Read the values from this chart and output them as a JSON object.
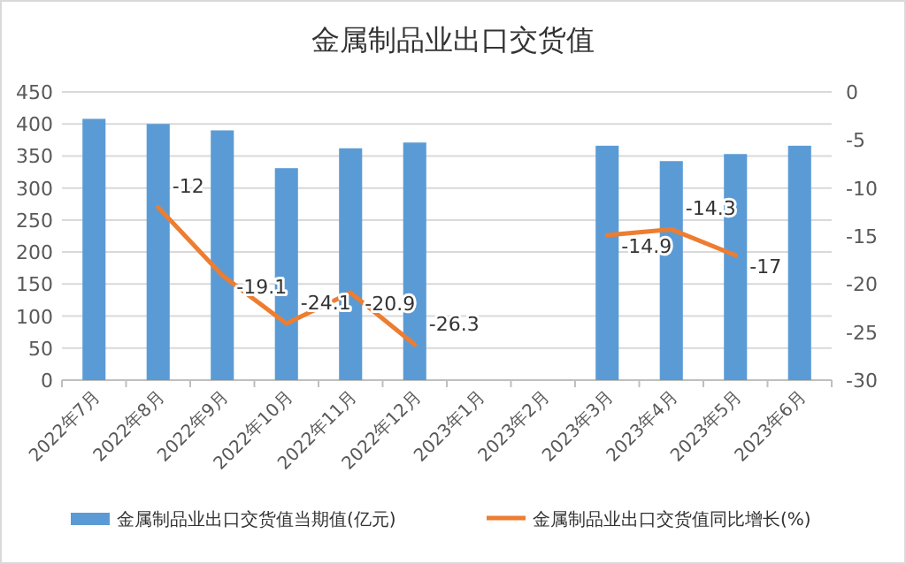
{
  "chart_data": {
    "type": "bar",
    "title": "金属制品业出口交货值",
    "categories": [
      "2022年7月",
      "2022年8月",
      "2022年9月",
      "2022年10月",
      "2022年11月",
      "2022年12月",
      "2023年1月",
      "2023年2月",
      "2023年3月",
      "2023年4月",
      "2023年5月",
      "2023年6月"
    ],
    "series": [
      {
        "name": "金属制品业出口交货值当期值(亿元)",
        "color": "#5b9bd5",
        "values": [
          408,
          400,
          390,
          331,
          362,
          371,
          null,
          null,
          366,
          342,
          353,
          366
        ]
      },
      {
        "name": "金属制品业出口交货值同比增长(%)",
        "type": "line",
        "axis": "y2",
        "color": "#ed7d31",
        "values": [
          null,
          -12,
          -19.1,
          -24.1,
          -20.9,
          -26.3,
          null,
          null,
          -14.9,
          -14.3,
          -17,
          null
        ],
        "value_labels": [
          null,
          "-12",
          "-19.1",
          "-24.1",
          "-20.9",
          "-26.3",
          null,
          null,
          "-14.9",
          "-14.3",
          "-17",
          null
        ]
      }
    ],
    "ylim": [
      0,
      450
    ],
    "yticks": [
      0,
      50,
      100,
      150,
      200,
      250,
      300,
      350,
      400,
      450
    ],
    "y2lim": [
      -30,
      0
    ],
    "y2ticks": [
      -30,
      -25,
      -20,
      -15,
      -10,
      -5,
      0
    ],
    "grid": "y",
    "legend": "bottom"
  }
}
